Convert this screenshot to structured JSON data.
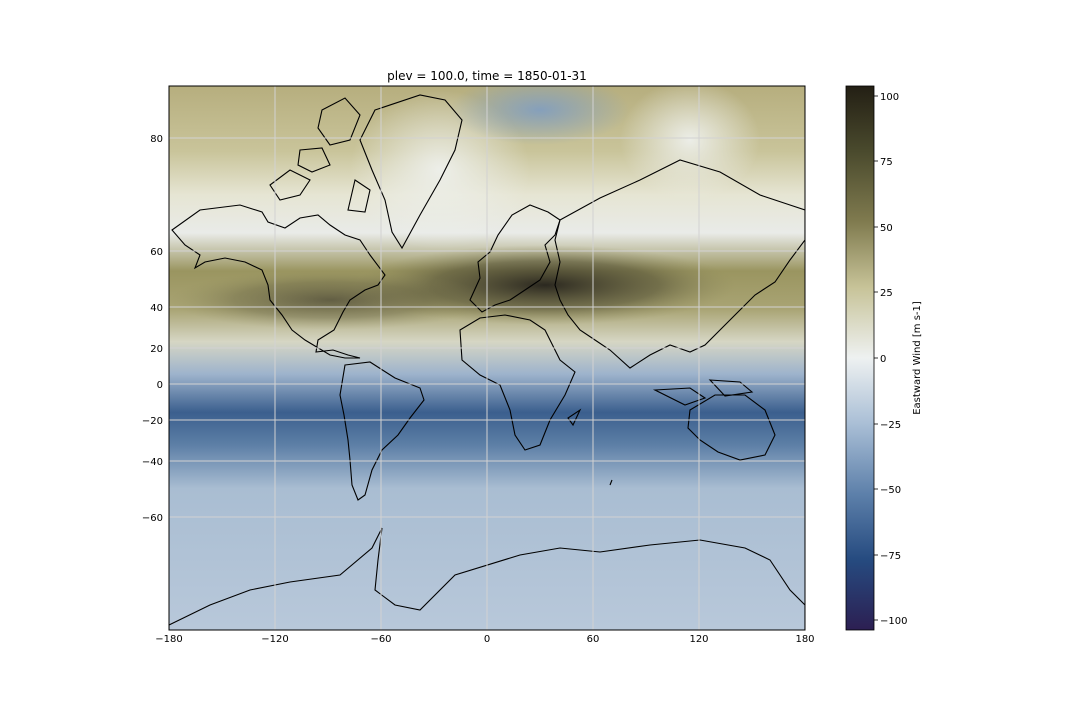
{
  "chart_data": {
    "type": "heatmap",
    "projection": "mercator",
    "title": "plev = 100.0, time = 1850-01-31",
    "variable": "Eastward Wind",
    "colorbar_label": "Eastward Wind [m s-1]",
    "colorbar_range": [
      -104,
      104
    ],
    "colorbar_ticks": [
      "100",
      "75",
      "50",
      "25",
      "0",
      "−25",
      "−50",
      "−75",
      "−100"
    ],
    "colormap": "cividis-like diverging (navy at −100 → light grey-blue at 0 → olive → near-black at +100)",
    "x_ticks": [
      "−180",
      "−120",
      "−60",
      "0",
      "60",
      "120",
      "180"
    ],
    "y_ticks": [
      "80",
      "60",
      "40",
      "20",
      "0",
      "−20",
      "−40",
      "−60"
    ],
    "lon_range": [
      -180,
      180
    ],
    "lat_range": [
      -84,
      84
    ],
    "grid": true,
    "coastlines": true
  }
}
